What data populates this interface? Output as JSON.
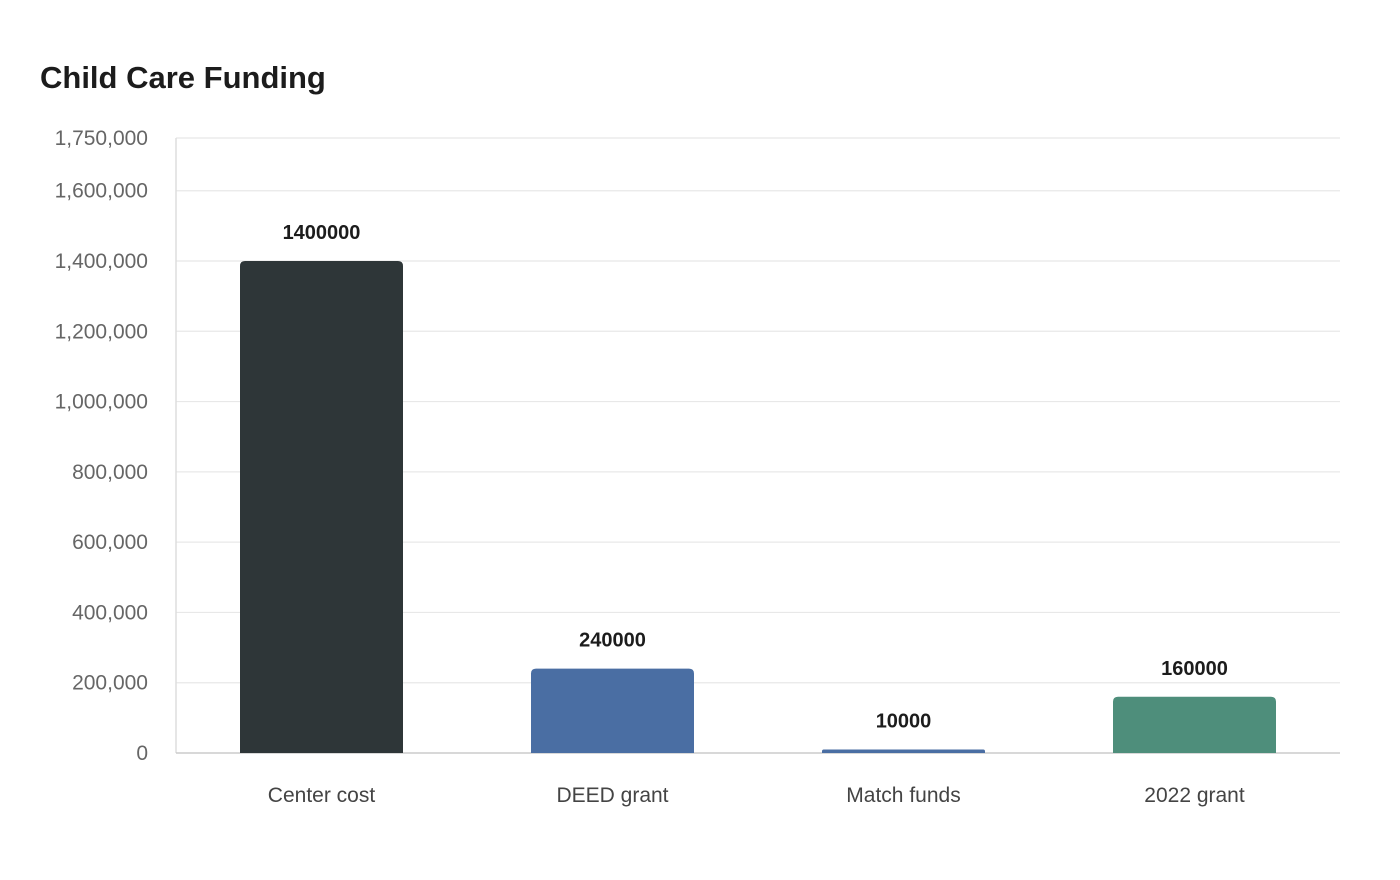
{
  "chart_data": {
    "type": "bar",
    "title": "Child Care Funding",
    "xlabel": "",
    "ylabel": "",
    "categories": [
      "Center cost",
      "DEED grant",
      "Match funds",
      "2022 grant"
    ],
    "values": [
      1400000,
      240000,
      10000,
      160000
    ],
    "data_labels": [
      "1400000",
      "240000",
      "10000",
      "160000"
    ],
    "ylim": [
      0,
      1750000
    ],
    "yticks": [
      0,
      200000,
      400000,
      600000,
      800000,
      1000000,
      1200000,
      1400000,
      1600000,
      1750000
    ],
    "ytick_labels": [
      "0",
      "200,000",
      "400,000",
      "600,000",
      "800,000",
      "1,000,000",
      "1,200,000",
      "1,400,000",
      "1,600,000",
      "1,750,000"
    ],
    "colors": [
      "#2e3638",
      "#4a6ea3",
      "#4a6ea3",
      "#4e8e7b"
    ],
    "grid": true,
    "legend": "none"
  }
}
